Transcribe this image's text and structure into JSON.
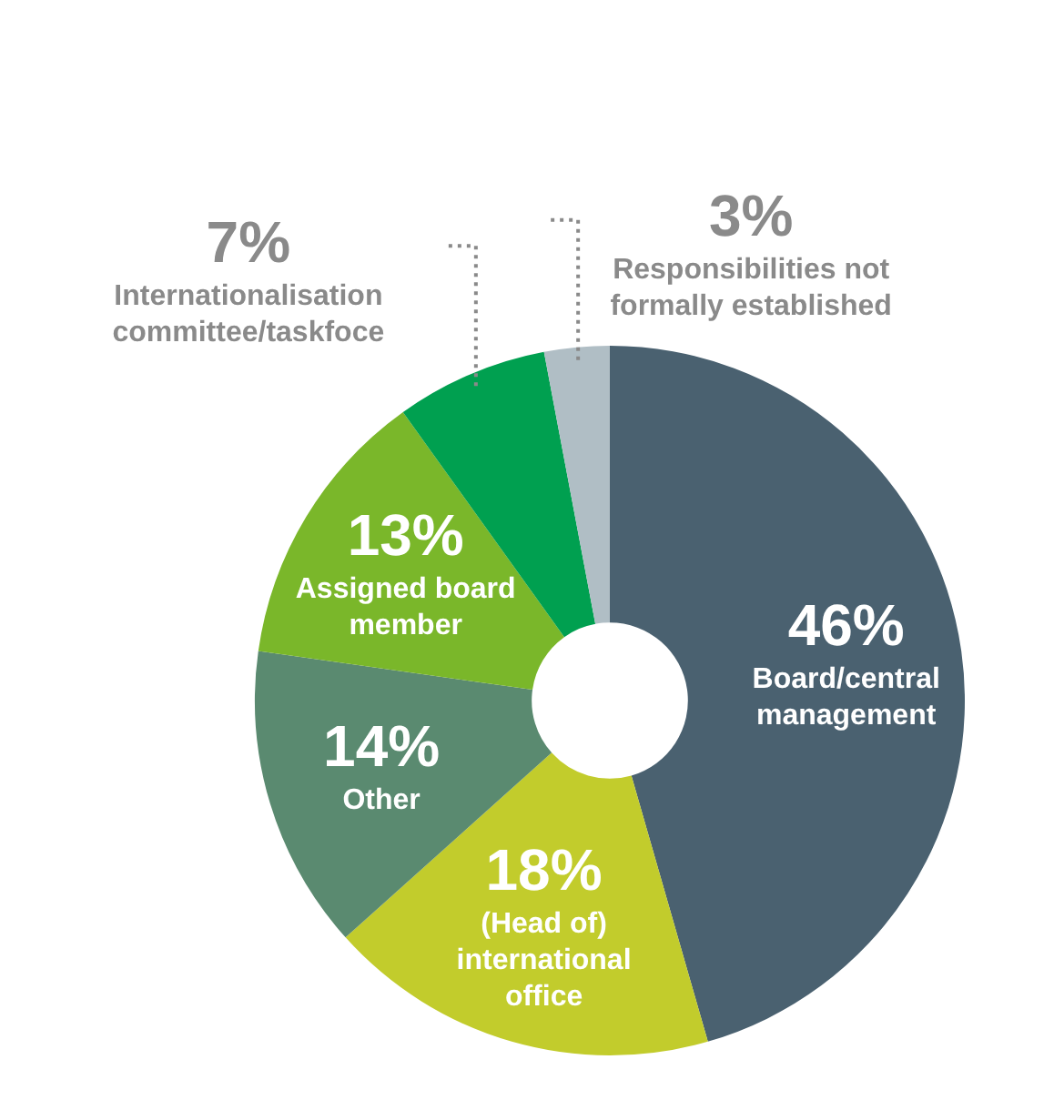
{
  "chart_data": {
    "type": "donut",
    "categories": [
      "Board/central management",
      "(Head of) international office",
      "Other",
      "Assigned board member",
      "Internationalisation committee/taskfoce",
      "Responsibilities not formally established"
    ],
    "values": [
      46,
      18,
      14,
      13,
      7,
      3
    ],
    "value_labels": [
      "46%",
      "18%",
      "14%",
      "13%",
      "7%",
      "3%"
    ],
    "colors": [
      "#4a6170",
      "#c2cc2c",
      "#5a8a70",
      "#7ab72a",
      "#00a050",
      "#b0bec5"
    ],
    "legend": false
  }
}
